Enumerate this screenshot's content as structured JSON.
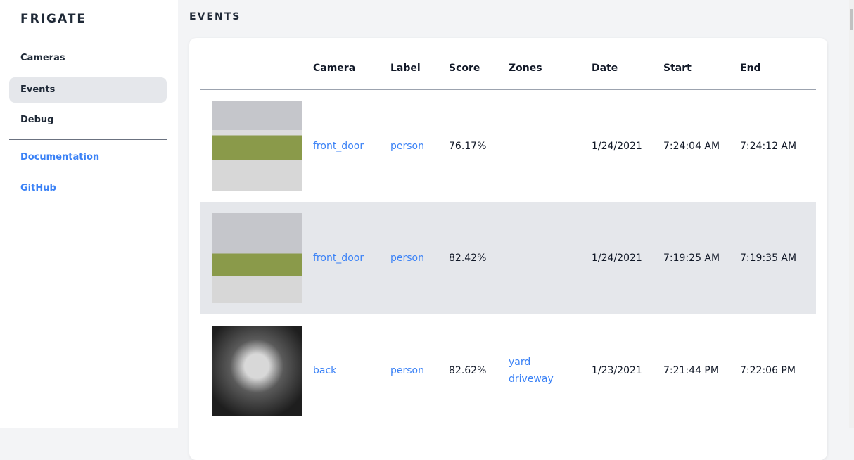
{
  "sidebar": {
    "brand": "FRIGATE",
    "items": [
      {
        "label": "Cameras"
      },
      {
        "label": "Events"
      },
      {
        "label": "Debug"
      }
    ],
    "links": [
      {
        "label": "Documentation"
      },
      {
        "label": "GitHub"
      }
    ]
  },
  "page": {
    "title": "EVENTS"
  },
  "table": {
    "headers": [
      "",
      "Camera",
      "Label",
      "Score",
      "Zones",
      "Date",
      "Start",
      "End"
    ],
    "rows": [
      {
        "camera": "front_door",
        "label": "person",
        "score": "76.17%",
        "zones": [
          "",
          ""
        ],
        "date": "1/24/2021",
        "start": "7:24:04 AM",
        "end": "7:24:12 AM"
      },
      {
        "camera": "front_door",
        "label": "person",
        "score": "82.42%",
        "zones": [
          "",
          ""
        ],
        "date": "1/24/2021",
        "start": "7:19:25 AM",
        "end": "7:19:35 AM"
      },
      {
        "camera": "back",
        "label": "person",
        "score": "82.62%",
        "zones": [
          "yard",
          "driveway"
        ],
        "date": "1/23/2021",
        "start": "7:21:44 PM",
        "end": "7:22:06 PM"
      }
    ]
  },
  "colors": {
    "accent": "#3b82f6",
    "active_bg": "#e5e7eb"
  }
}
